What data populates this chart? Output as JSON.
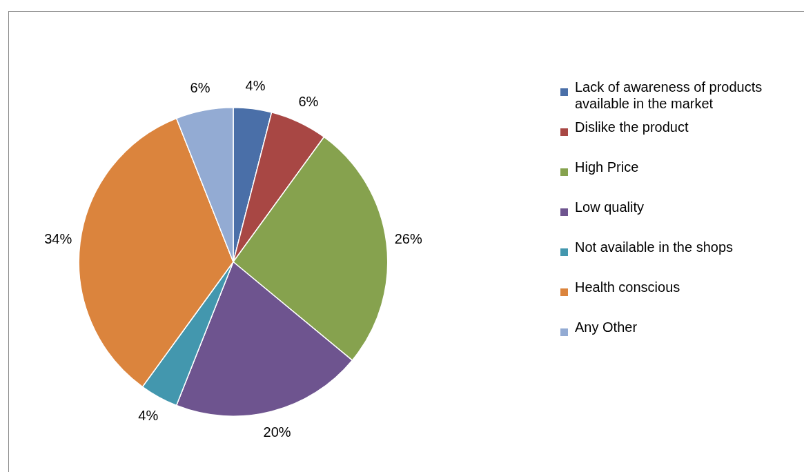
{
  "chart_data": {
    "type": "pie",
    "categories": [
      "Lack of awareness of products available in the market",
      "Dislike the product",
      "High Price",
      "Low quality",
      "Not available in the shops",
      "Health conscious",
      "Any Other"
    ],
    "values": [
      4,
      6,
      26,
      20,
      4,
      34,
      6
    ],
    "colors": [
      "#4a6fa8",
      "#a84744",
      "#86a24e",
      "#6e548f",
      "#4397ae",
      "#db843d",
      "#93abd3"
    ],
    "value_labels": [
      "4%",
      "6%",
      "26%",
      "20%",
      "4%",
      "34%",
      "6%"
    ],
    "legend": "right"
  }
}
